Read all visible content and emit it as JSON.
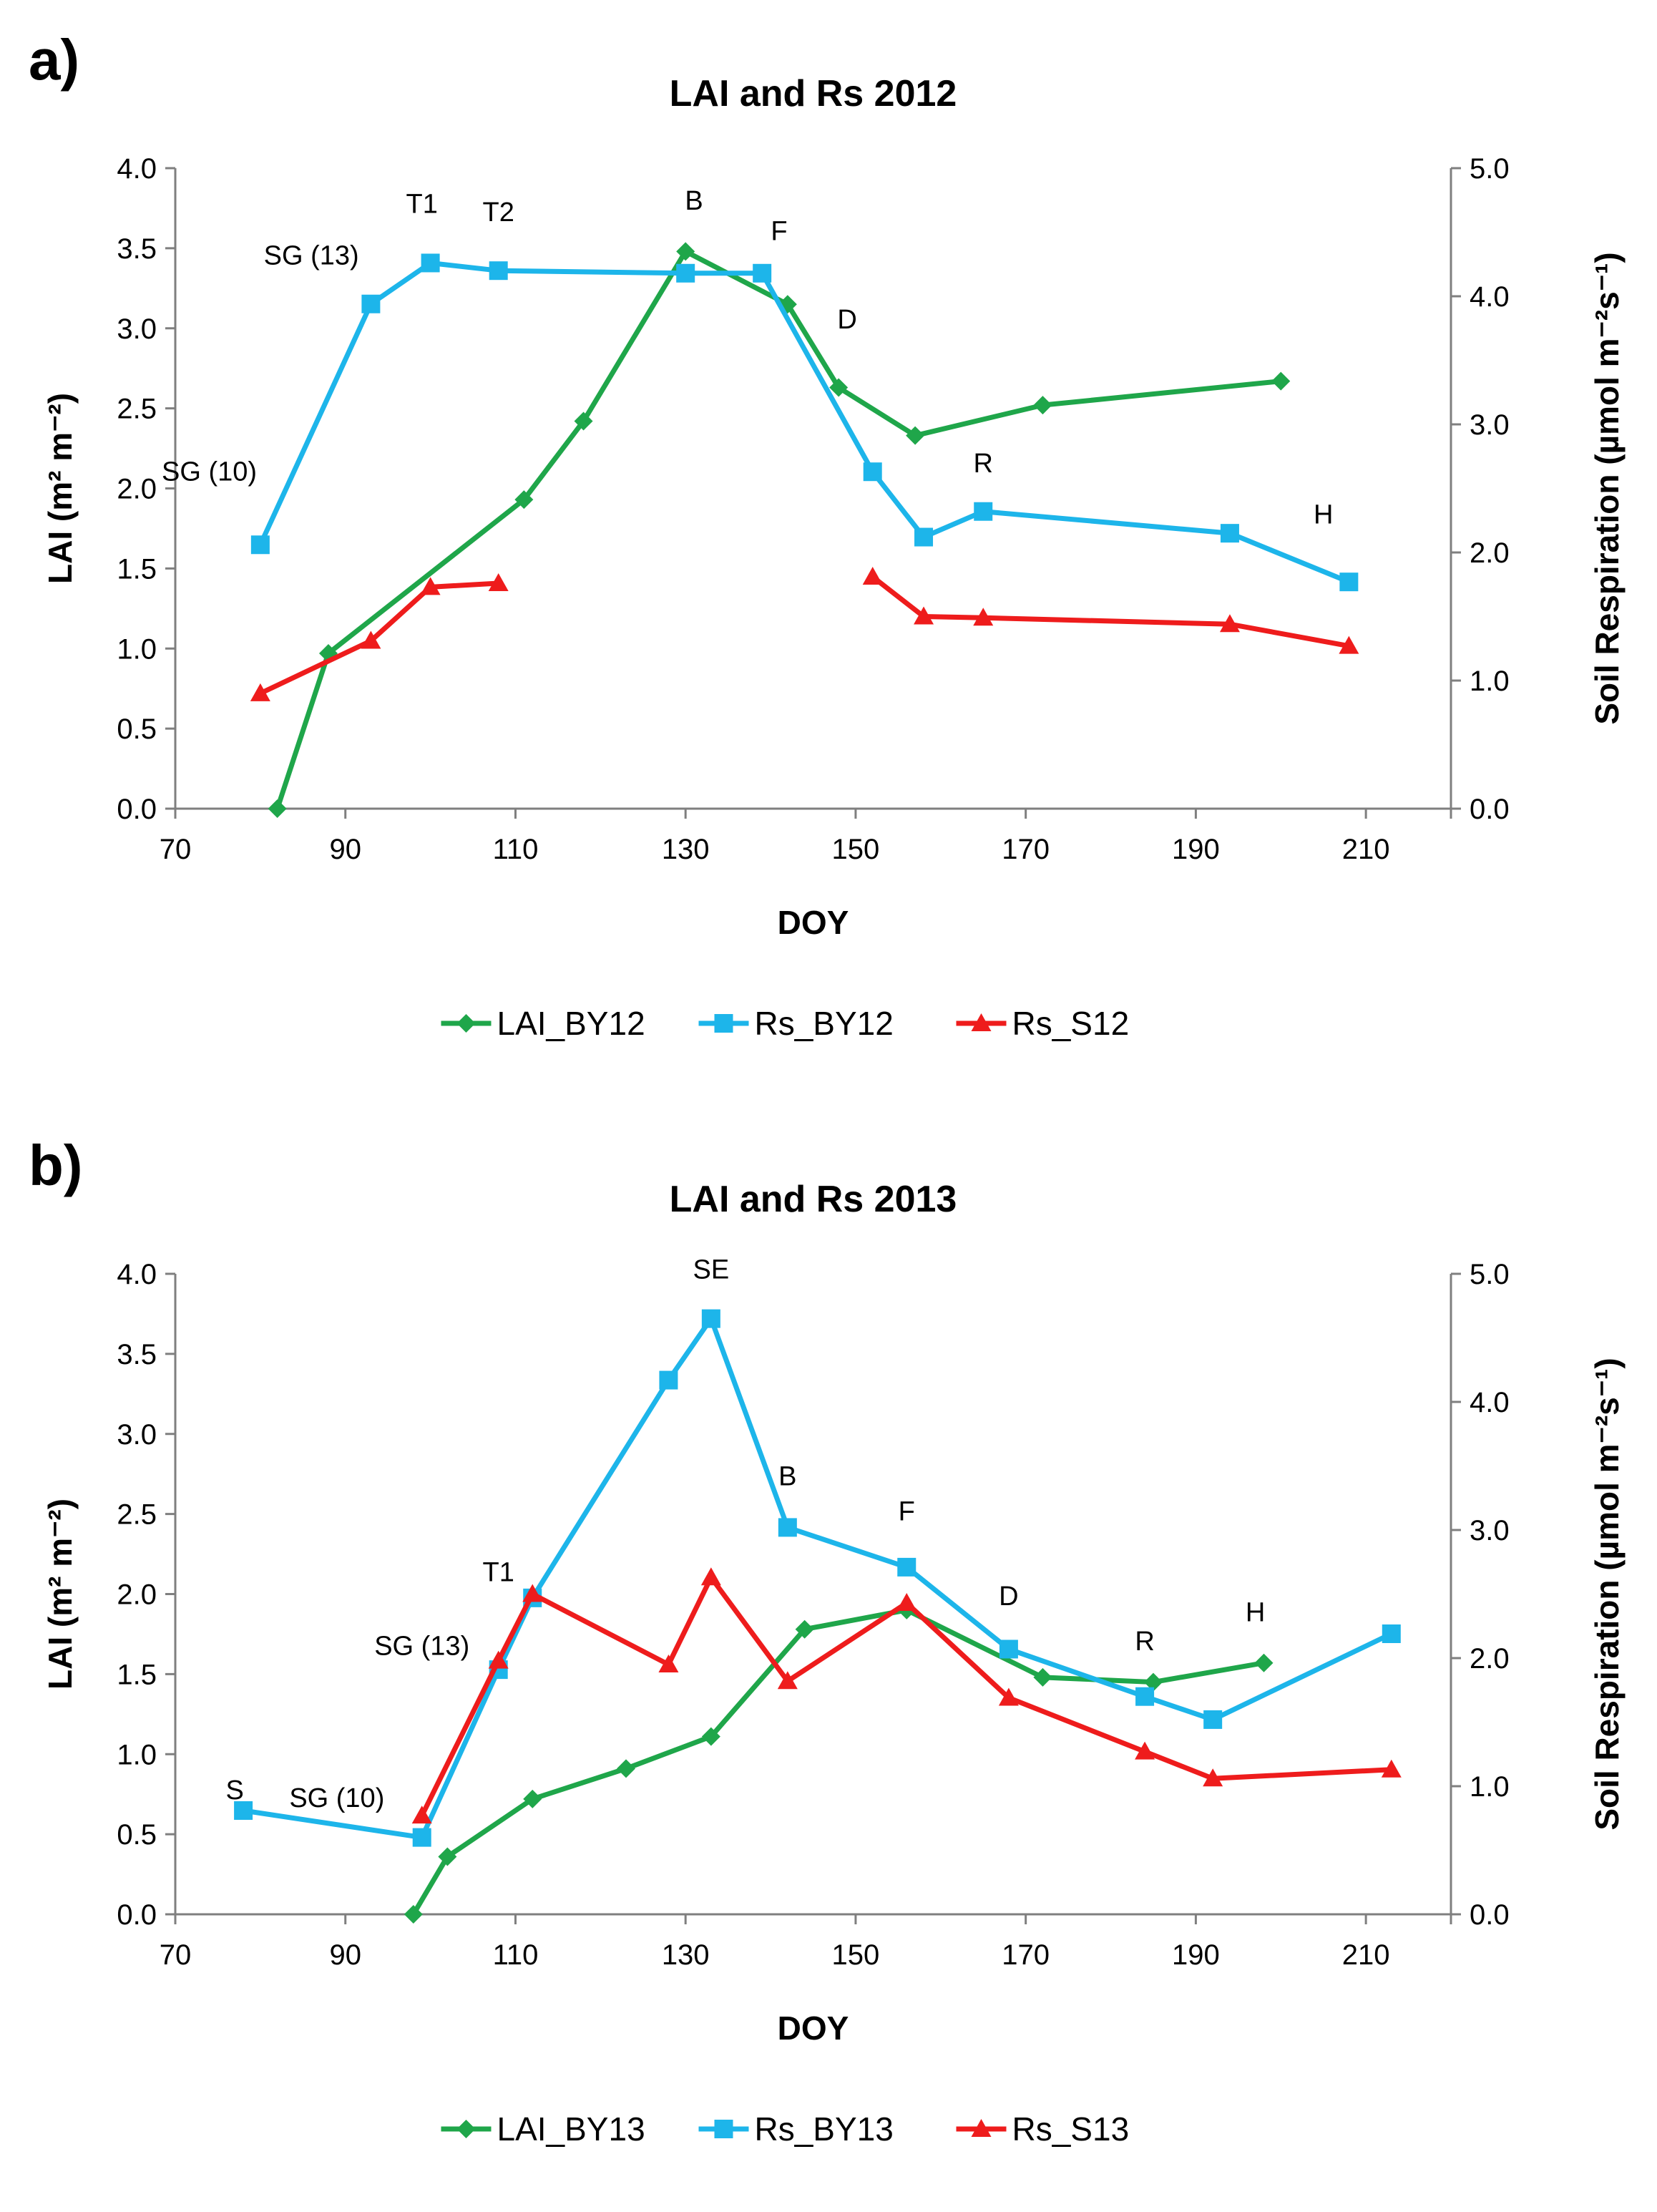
{
  "chart_data": [
    {
      "panel_label": "a)",
      "type": "line",
      "title": "LAI and Rs 2012",
      "xlabel": "DOY",
      "ylabel": "LAI (m² m⁻²)",
      "y2label": "Soil Respiration (µmol m⁻²s⁻¹)",
      "xlim": [
        70,
        220
      ],
      "ylim": [
        0,
        4
      ],
      "y2lim": [
        0,
        5
      ],
      "xticks": [
        "70",
        "90",
        "110",
        "130",
        "150",
        "170",
        "190",
        "210"
      ],
      "yticks": [
        "0.0",
        "0.5",
        "1.0",
        "1.5",
        "2.0",
        "2.5",
        "3.0",
        "3.5",
        "4.0"
      ],
      "y2ticks": [
        "0.0",
        "1.0",
        "2.0",
        "3.0",
        "4.0",
        "5.0"
      ],
      "legend_position": "bottom",
      "series": [
        {
          "name": "LAI_BY12",
          "axis": "left",
          "color": "#1FA64A",
          "marker": "diamond",
          "x": [
            82,
            88,
            111,
            118,
            130,
            142,
            148,
            157,
            172,
            200
          ],
          "y": [
            0.0,
            0.97,
            1.93,
            2.42,
            3.48,
            3.15,
            2.63,
            2.33,
            2.52,
            2.67
          ]
        },
        {
          "name": "Rs_BY12",
          "axis": "right",
          "color": "#1DB5EA",
          "marker": "square",
          "x": [
            80,
            93,
            100,
            108,
            130,
            139,
            152,
            158,
            165,
            194,
            208
          ],
          "y": [
            2.06,
            3.94,
            4.26,
            4.2,
            4.18,
            4.18,
            2.63,
            2.12,
            2.32,
            2.15,
            1.77
          ]
        },
        {
          "name": "Rs_S12",
          "axis": "right",
          "color": "#EE1C1C",
          "marker": "triangle",
          "x": [
            80,
            93,
            100,
            108,
            152,
            158,
            165,
            194,
            208
          ],
          "y": [
            0.9,
            1.31,
            1.73,
            1.76,
            1.81,
            1.5,
            1.49,
            1.44,
            1.27
          ],
          "break_after": 3
        }
      ],
      "annotations": [
        {
          "text": "SG (10)",
          "x": 74,
          "y": 2.05
        },
        {
          "text": "SG (13)",
          "x": 86,
          "y": 3.4
        },
        {
          "text": "T1",
          "x": 99,
          "y": 3.72
        },
        {
          "text": "T2",
          "x": 108,
          "y": 3.67
        },
        {
          "text": "B",
          "x": 131,
          "y": 3.74
        },
        {
          "text": "F",
          "x": 141,
          "y": 3.55
        },
        {
          "text": "D",
          "x": 149,
          "y": 3.0
        },
        {
          "text": "R",
          "x": 165,
          "y": 2.1
        },
        {
          "text": "H",
          "x": 205,
          "y": 1.78
        }
      ]
    },
    {
      "panel_label": "b)",
      "type": "line",
      "title": "LAI and Rs 2013",
      "xlabel": "DOY",
      "ylabel": "LAI (m² m⁻²)",
      "y2label": "Soil Respiration (µmol m⁻²s⁻¹)",
      "xlim": [
        70,
        220
      ],
      "ylim": [
        0,
        4
      ],
      "y2lim": [
        0,
        5
      ],
      "xticks": [
        "70",
        "90",
        "110",
        "130",
        "150",
        "170",
        "190",
        "210"
      ],
      "yticks": [
        "0.0",
        "0.5",
        "1.0",
        "1.5",
        "2.0",
        "2.5",
        "3.0",
        "3.5",
        "4.0"
      ],
      "y2ticks": [
        "0.0",
        "1.0",
        "2.0",
        "3.0",
        "4.0",
        "5.0"
      ],
      "legend_position": "bottom",
      "series": [
        {
          "name": "LAI_BY13",
          "axis": "left",
          "color": "#1FA64A",
          "marker": "diamond",
          "x": [
            98,
            102,
            112,
            123,
            133,
            144,
            156,
            172,
            185,
            198
          ],
          "y": [
            0.0,
            0.36,
            0.72,
            0.91,
            1.11,
            1.78,
            1.9,
            1.48,
            1.45,
            1.57
          ]
        },
        {
          "name": "Rs_BY13",
          "axis": "right",
          "color": "#1DB5EA",
          "marker": "square",
          "x": [
            78,
            99,
            108,
            112,
            128,
            133,
            142,
            156,
            168,
            184,
            192,
            213
          ],
          "y": [
            0.81,
            0.6,
            1.91,
            2.47,
            4.17,
            4.65,
            3.02,
            2.71,
            2.07,
            1.7,
            1.52,
            2.19
          ]
        },
        {
          "name": "Rs_S13",
          "axis": "right",
          "color": "#EE1C1C",
          "marker": "triangle",
          "x": [
            99,
            108,
            112,
            128,
            133,
            142,
            156,
            168,
            184,
            192,
            213
          ],
          "y": [
            0.77,
            1.98,
            2.5,
            1.95,
            2.63,
            1.82,
            2.43,
            1.69,
            1.27,
            1.06,
            1.13
          ]
        }
      ],
      "annotations": [
        {
          "text": "S",
          "x": 77,
          "y": 0.72
        },
        {
          "text": "SG (10)",
          "x": 89,
          "y": 0.67
        },
        {
          "text": "SG (13)",
          "x": 99,
          "y": 1.62
        },
        {
          "text": "T1",
          "x": 108,
          "y": 2.08
        },
        {
          "text": "SE",
          "x": 133,
          "y": 3.97
        },
        {
          "text": "B",
          "x": 142,
          "y": 2.68
        },
        {
          "text": "F",
          "x": 156,
          "y": 2.46
        },
        {
          "text": "D",
          "x": 168,
          "y": 1.93
        },
        {
          "text": "R",
          "x": 184,
          "y": 1.65
        },
        {
          "text": "H",
          "x": 197,
          "y": 1.83
        }
      ]
    }
  ]
}
